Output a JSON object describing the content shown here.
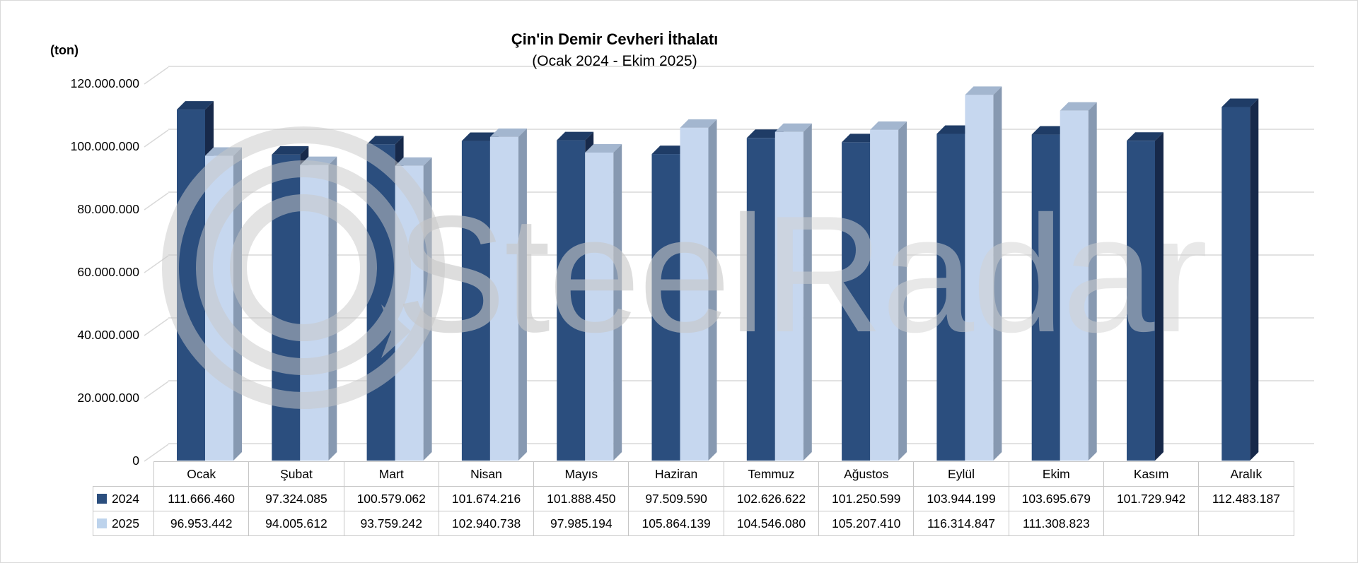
{
  "watermark": {
    "part1": "Steel",
    "part2": "Radar"
  },
  "colors": {
    "gridline": "#d9d9d9",
    "table_border": "#c6c6c6",
    "text": "#000000",
    "watermark_gray": "#c8c8c8"
  },
  "chart_data": {
    "type": "bar",
    "title": "Çin'in Demir Cevheri İthalatı",
    "subtitle": "(Ocak 2024 - Ekim 2025)",
    "unit_label": "(ton)",
    "ylabel": "(ton)",
    "xlabel": "",
    "ylim": [
      0,
      120000000
    ],
    "ytick_step": 20000000,
    "grid": true,
    "style": "3d-column",
    "legend_position": "data-table-left",
    "categories": [
      "Ocak",
      "Şubat",
      "Mart",
      "Nisan",
      "Mayıs",
      "Haziran",
      "Temmuz",
      "Ağustos",
      "Eylül",
      "Ekim",
      "Kasım",
      "Aralık"
    ],
    "series": [
      {
        "name": "2024",
        "color_front": "#2B4E7E",
        "color_top": "#1F3C66",
        "color_side": "#17294A",
        "legend_color": "#2B4E7E",
        "values": [
          111666460,
          97324085,
          100579062,
          101674216,
          101888450,
          97509590,
          102626622,
          101250599,
          103944199,
          103695679,
          101729942,
          112483187
        ]
      },
      {
        "name": "2025",
        "color_front": "#C6D7EF",
        "color_top": "#A3B6CF",
        "color_side": "#8799B1",
        "legend_color": "#BDD3EC",
        "values": [
          96953442,
          94005612,
          93759242,
          102940738,
          97985194,
          105864139,
          104546080,
          105207410,
          116314847,
          111308823,
          null,
          null
        ]
      }
    ]
  }
}
